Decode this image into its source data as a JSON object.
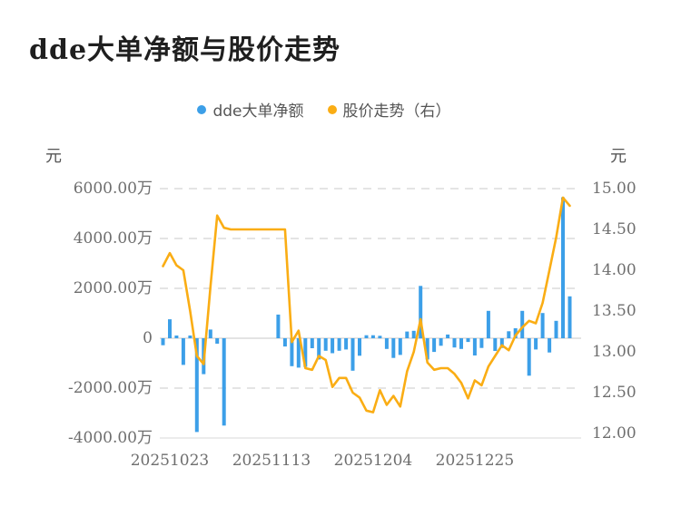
{
  "title": "dde大单净额与股价走势",
  "legend": {
    "items": [
      {
        "label": "dde大单净额",
        "color": "#3C9FE8"
      },
      {
        "label": "股价走势（右）",
        "color": "#FAAD14"
      }
    ]
  },
  "axes": {
    "left": {
      "unit": "元",
      "tick_labels": [
        "6000.00万",
        "4000.00万",
        "2000.00万",
        "0",
        "-2000.00万",
        "-4000.00万"
      ],
      "tick_values": [
        6000,
        4000,
        2000,
        0,
        -2000,
        -4000
      ]
    },
    "right": {
      "unit": "元",
      "tick_labels": [
        "15.00",
        "14.50",
        "14.00",
        "13.50",
        "13.00",
        "12.50",
        "12.00"
      ],
      "tick_values": [
        15.0,
        14.5,
        14.0,
        13.5,
        13.0,
        12.5,
        12.0
      ]
    },
    "x": {
      "ticks": [
        {
          "label": "20251023",
          "slot": 1
        },
        {
          "label": "20251113",
          "slot": 16
        },
        {
          "label": "20251204",
          "slot": 31
        },
        {
          "label": "20251225",
          "slot": 46
        }
      ]
    }
  },
  "chart_data": {
    "type": "bar",
    "combo": "bar(left-axis) + line(right-axis)",
    "title": "dde大单净额与股价走势",
    "x_slots": 61,
    "x_tick_labels": [
      "20251023",
      "20251113",
      "20251204",
      "20251225"
    ],
    "grid": "horizontal dashed gridlines, zero line solid",
    "left_axis": {
      "label": "元",
      "unit_of_values": "万元",
      "range": [
        -4000,
        6000
      ],
      "step": 2000
    },
    "right_axis": {
      "label": "元",
      "range": [
        12.0,
        15.0
      ],
      "step": 0.5
    },
    "series": [
      {
        "name": "dde大单净额",
        "type": "bar",
        "axis": "left",
        "color": "#3C9FE8",
        "unit": "万元",
        "values": [
          -280,
          760,
          110,
          -1070,
          110,
          -3760,
          -1440,
          350,
          -220,
          -3500,
          null,
          null,
          null,
          null,
          null,
          null,
          null,
          950,
          -330,
          -1120,
          -1180,
          -1150,
          -400,
          -850,
          -500,
          -600,
          -500,
          -450,
          -1300,
          -700,
          120,
          120,
          100,
          -430,
          -790,
          -670,
          270,
          300,
          2100,
          -850,
          -550,
          -300,
          150,
          -370,
          -430,
          -150,
          -690,
          -390,
          1100,
          -510,
          -390,
          280,
          400,
          1100,
          -1500,
          -450,
          1010,
          -570,
          700,
          5650,
          1680
        ]
      },
      {
        "name": "股价走势（右）",
        "type": "line",
        "axis": "right",
        "color": "#FAAD14",
        "unit": "元",
        "values": [
          14.05,
          14.21,
          14.06,
          14.0,
          13.5,
          12.95,
          12.85,
          13.8,
          14.67,
          14.52,
          14.5,
          14.5,
          14.5,
          14.5,
          14.5,
          14.5,
          14.5,
          14.5,
          14.5,
          13.12,
          13.26,
          12.8,
          12.78,
          12.95,
          12.9,
          12.57,
          12.68,
          12.68,
          12.5,
          12.44,
          12.28,
          12.26,
          12.53,
          12.35,
          12.46,
          12.33,
          12.76,
          13.0,
          13.4,
          12.87,
          12.78,
          12.8,
          12.8,
          12.73,
          12.62,
          12.43,
          12.65,
          12.59,
          12.82,
          12.95,
          13.08,
          13.02,
          13.2,
          13.3,
          13.38,
          13.35,
          13.6,
          14.0,
          14.4,
          14.89,
          14.79
        ]
      }
    ]
  }
}
